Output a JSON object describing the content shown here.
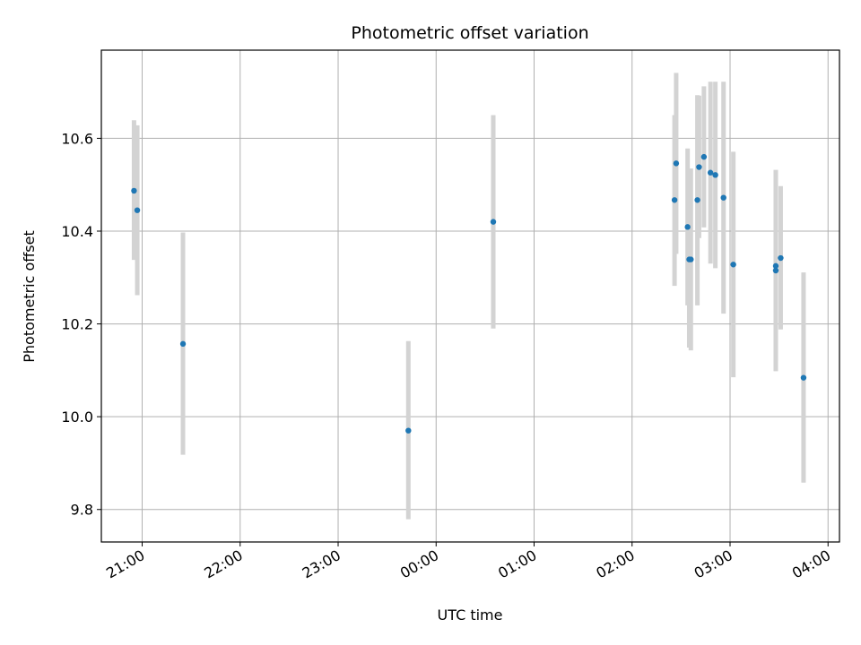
{
  "chart_data": {
    "type": "scatter",
    "title": "Photometric offset variation",
    "xlabel": "UTC time",
    "ylabel": "Photometric offset",
    "x_unit": "hours UTC",
    "xlim": [
      "20:35",
      "04:07"
    ],
    "ylim": [
      9.73,
      10.79
    ],
    "x_ticks": [
      {
        "time": "21:00",
        "label": "21:00"
      },
      {
        "time": "22:00",
        "label": "22:00"
      },
      {
        "time": "23:00",
        "label": "23:00"
      },
      {
        "time": "00:00",
        "label": "00:00"
      },
      {
        "time": "01:00",
        "label": "01:00"
      },
      {
        "time": "02:00",
        "label": "02:00"
      },
      {
        "time": "03:00",
        "label": "03:00"
      },
      {
        "time": "04:00",
        "label": "04:00"
      }
    ],
    "y_ticks": [
      {
        "value": 9.8,
        "label": "9.8"
      },
      {
        "value": 10.0,
        "label": "10.0"
      },
      {
        "value": 10.2,
        "label": "10.2"
      },
      {
        "value": 10.4,
        "label": "10.4"
      },
      {
        "value": 10.6,
        "label": "10.6"
      }
    ],
    "grid": true,
    "point_color": "#1f77b4",
    "errorbar_color": "#d3d3d3",
    "points": [
      {
        "t": "20:55",
        "y": 10.487,
        "err_low": 10.338,
        "err_high": 10.639
      },
      {
        "t": "20:57",
        "y": 10.445,
        "err_low": 10.262,
        "err_high": 10.628
      },
      {
        "t": "21:25",
        "y": 10.157,
        "err_low": 9.918,
        "err_high": 10.397
      },
      {
        "t": "23:43",
        "y": 9.97,
        "err_low": 9.779,
        "err_high": 10.163
      },
      {
        "t": "00:35",
        "y": 10.42,
        "err_low": 10.19,
        "err_high": 10.65
      },
      {
        "t": "02:26",
        "y": 10.467,
        "err_low": 10.282,
        "err_high": 10.65
      },
      {
        "t": "02:27",
        "y": 10.546,
        "err_low": 10.351,
        "err_high": 10.741
      },
      {
        "t": "02:34",
        "y": 10.409,
        "err_low": 10.24,
        "err_high": 10.578
      },
      {
        "t": "02:35",
        "y": 10.339,
        "err_low": 10.149,
        "err_high": 10.529
      },
      {
        "t": "02:36",
        "y": 10.339,
        "err_low": 10.143,
        "err_high": 10.535
      },
      {
        "t": "02:40",
        "y": 10.467,
        "err_low": 10.24,
        "err_high": 10.693
      },
      {
        "t": "02:41",
        "y": 10.538,
        "err_low": 10.385,
        "err_high": 10.692
      },
      {
        "t": "02:44",
        "y": 10.56,
        "err_low": 10.408,
        "err_high": 10.712
      },
      {
        "t": "02:48",
        "y": 10.526,
        "err_low": 10.33,
        "err_high": 10.722
      },
      {
        "t": "02:51",
        "y": 10.521,
        "err_low": 10.32,
        "err_high": 10.722
      },
      {
        "t": "02:56",
        "y": 10.472,
        "err_low": 10.222,
        "err_high": 10.722
      },
      {
        "t": "03:02",
        "y": 10.328,
        "err_low": 10.085,
        "err_high": 10.571
      },
      {
        "t": "03:28",
        "y": 10.325,
        "err_low": 10.12,
        "err_high": 10.531
      },
      {
        "t": "03:28",
        "y": 10.315,
        "err_low": 10.098,
        "err_high": 10.532
      },
      {
        "t": "03:31",
        "y": 10.342,
        "err_low": 10.188,
        "err_high": 10.497
      },
      {
        "t": "03:45",
        "y": 10.084,
        "err_low": 9.858,
        "err_high": 10.311
      }
    ]
  }
}
